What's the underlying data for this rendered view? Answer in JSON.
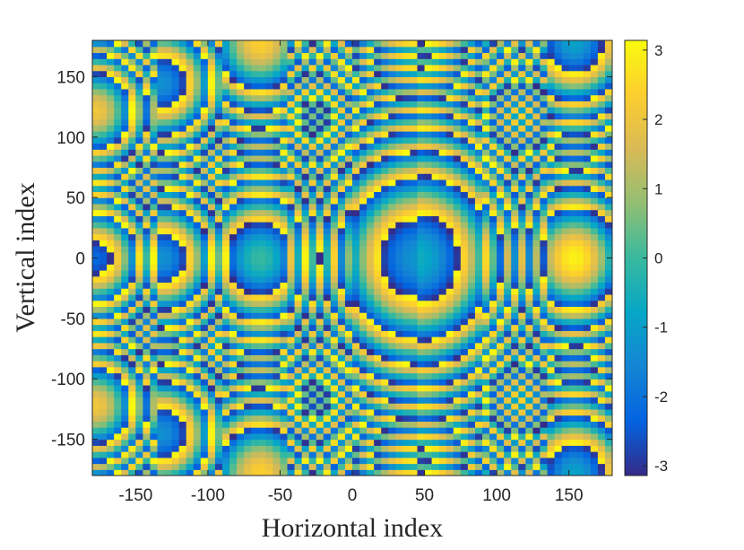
{
  "chart_data": {
    "type": "heatmap",
    "title": "",
    "xlabel": "Horizontal index",
    "ylabel": "Vertical index",
    "xlim": [
      -180,
      180
    ],
    "ylim": [
      -180,
      180
    ],
    "xticks": [
      -150,
      -100,
      -50,
      0,
      50,
      100,
      150
    ],
    "xtick_labels": [
      "-150",
      "-100",
      "-50",
      "0",
      "50",
      "100",
      "150"
    ],
    "yticks": [
      -150,
      -100,
      -50,
      0,
      50,
      100,
      150
    ],
    "ytick_labels": [
      "-150",
      "-100",
      "-50",
      "0",
      "50",
      "100",
      "150"
    ],
    "colorbar": {
      "colormap": "parula",
      "range": [
        -3.14,
        3.14
      ],
      "ticks": [
        -3,
        -2,
        -1,
        0,
        1,
        2,
        3
      ],
      "tick_labels": [
        "-3",
        "-2",
        "-1",
        "0",
        "1",
        "2",
        "3"
      ],
      "colors": [
        "#352a87",
        "#0363e1",
        "#1485d4",
        "#06a7c6",
        "#38b99e",
        "#92bf73",
        "#d9ba56",
        "#fcce2e",
        "#f9fb0e"
      ]
    },
    "segment_edges_x": [
      -180,
      -135,
      -90,
      -45,
      0,
      45,
      90,
      135,
      180
    ],
    "segment_centers_x": [
      -157.5,
      -112.5,
      -67.5,
      -22.5,
      22.5,
      67.5,
      112.5,
      157.5
    ],
    "central_peak_x": 45,
    "grid": false
  }
}
